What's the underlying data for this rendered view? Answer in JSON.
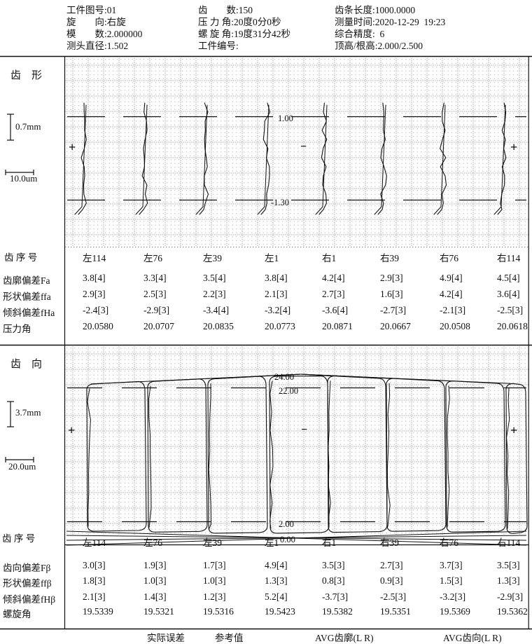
{
  "header": {
    "col1": [
      {
        "label": "工件图号",
        "value": "01"
      },
      {
        "label": "旋　　向",
        "value": "右旋"
      },
      {
        "label": "模　　数",
        "value": "2.000000"
      },
      {
        "label": "测头直径",
        "value": "1.502"
      }
    ],
    "col2": [
      {
        "label": "齿　　数",
        "value": "150"
      },
      {
        "label": "压 力 角",
        "value": "20度0分0秒"
      },
      {
        "label": "螺 旋 角",
        "value": "19度31分42秒"
      },
      {
        "label": "工件编号",
        "value": ""
      }
    ],
    "col3": [
      {
        "label": "齿条长度",
        "value": "1000.0000"
      },
      {
        "label": "测量时间",
        "value": "2020-12-29  19:23"
      },
      {
        "label": "综合精度",
        "value": "  6"
      },
      {
        "label": "顶高/根高",
        "value": "2.000/2.500"
      }
    ]
  },
  "signs": {
    "plus": "+",
    "minus": "−"
  },
  "teeth": [
    "左114",
    "左76",
    "左39",
    "左1",
    "右1",
    "右39",
    "右76",
    "右114"
  ],
  "profile": {
    "title": "齿　形",
    "v_scale": "0.7mm",
    "h_scale": "10.0um",
    "row_header": "齿 序 号",
    "band_top_label": "1.00",
    "band_bottom_label": "-1.30",
    "rows": [
      {
        "label": "齿廓偏差Fa",
        "values": [
          "3.8[4]",
          "3.3[4]",
          "3.5[4]",
          "3.8[4]",
          "4.2[4]",
          "2.9[3]",
          "4.9[4]",
          "4.5[4]"
        ]
      },
      {
        "label": "形状偏差ffa",
        "values": [
          "2.9[3]",
          "2.5[3]",
          "2.2[3]",
          "2.1[3]",
          "2.7[3]",
          "1.6[3]",
          "4.2[4]",
          "3.6[4]"
        ]
      },
      {
        "label": "倾斜偏差fHa",
        "values": [
          "-2.4[3]",
          "-2.9[3]",
          "-3.4[4]",
          "-3.2[4]",
          "-3.6[4]",
          "-2.7[3]",
          "-2.1[3]",
          "-2.5[3]"
        ]
      },
      {
        "label": "压力角",
        "values": [
          "20.0580",
          "20.0707",
          "20.0835",
          "20.0773",
          "20.0871",
          "20.0667",
          "20.0508",
          "20.0618"
        ]
      }
    ]
  },
  "lead": {
    "title": "齿　向",
    "v_scale": "3.7mm",
    "h_scale": "20.0um",
    "row_header": "齿 序 号",
    "labels": {
      "top1": "24.00",
      "top2": "22.00",
      "bottom1": "2.00",
      "bottom2": "0.00"
    },
    "rows": [
      {
        "label": "齿向偏差Fβ",
        "values": [
          "3.0[3]",
          "1.9[3]",
          "1.7[3]",
          "4.9[4]",
          "3.5[3]",
          "2.7[3]",
          "3.7[3]",
          "3.5[3]"
        ]
      },
      {
        "label": "形状偏差ffβ",
        "values": [
          "1.8[3]",
          "1.0[3]",
          "1.0[3]",
          "1.3[3]",
          "0.8[3]",
          "0.9[3]",
          "1.5[3]",
          "1.3[3]"
        ]
      },
      {
        "label": "倾斜偏差fHβ",
        "values": [
          "2.1[3]",
          "1.4[3]",
          "1.2[3]",
          "5.2[4]",
          "-3.7[3]",
          "-2.5[3]",
          "-3.2[3]",
          "-2.9[3]"
        ]
      },
      {
        "label": "螺旋角",
        "values": [
          "19.5339",
          "19.5321",
          "19.5316",
          "19.5423",
          "19.5382",
          "19.5351",
          "19.5369",
          "19.5362"
        ]
      }
    ]
  },
  "footer": {
    "items": [
      "实际误差",
      "参考值",
      "AVG齿廓(L R)",
      "AVG齿向(L R)"
    ]
  }
}
